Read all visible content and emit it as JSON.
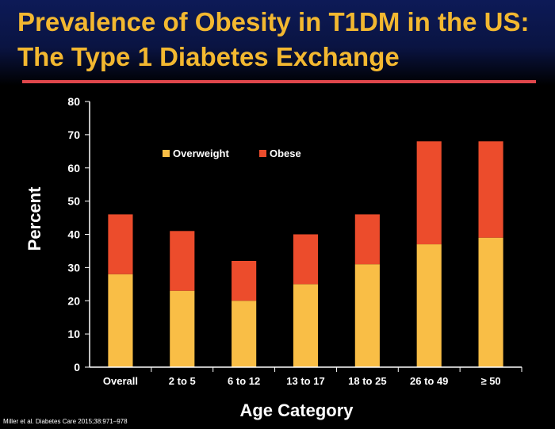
{
  "title": "Prevalence of Obesity in T1DM in the US: The Type 1 Diabetes Exchange",
  "citation": "Miller et al. Diabetes Care 2015;38:971–978",
  "colors": {
    "title": "#f3b830",
    "rule": "#e0474c",
    "overweight": "#f9be46",
    "obese": "#ec4c2c"
  },
  "chart_data": {
    "type": "bar",
    "stacked": true,
    "categories": [
      "Overall",
      "2 to 5",
      "6 to 12",
      "13 to 17",
      "18 to 25",
      "26 to 49",
      "≥ 50"
    ],
    "series": [
      {
        "name": "Overweight",
        "color": "#f9be46",
        "values": [
          28,
          23,
          20,
          25,
          31,
          37,
          39
        ]
      },
      {
        "name": "Obese",
        "color": "#ec4c2c",
        "values": [
          18,
          18,
          12,
          15,
          15,
          31,
          29
        ]
      }
    ],
    "xlabel": "Age Category",
    "ylabel": "Percent",
    "ylim": [
      0,
      80
    ],
    "yticks": [
      0,
      10,
      20,
      30,
      40,
      50,
      60,
      70,
      80
    ],
    "grid": false,
    "legend": "top-left inside plot"
  }
}
